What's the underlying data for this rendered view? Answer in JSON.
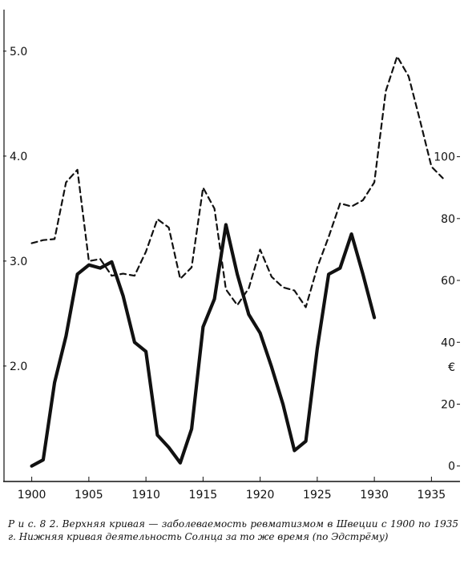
{
  "chart_data": {
    "type": "line",
    "title": "",
    "xlabel": "",
    "ylabel": "",
    "xlim": [
      1897.5,
      1937.5
    ],
    "x_ticks": [
      1900,
      1905,
      1910,
      1915,
      1920,
      1925,
      1930,
      1935
    ],
    "left_axis": {
      "ylim": [
        0.9,
        5.35
      ],
      "ticks": [
        5.0,
        4.0,
        3.0,
        2.0
      ],
      "tick_labels": [
        "5.0",
        "4.0",
        "3.0",
        "2.0"
      ]
    },
    "right_axis": {
      "ylim": [
        -5,
        146
      ],
      "ticks": [
        100,
        80,
        60,
        40,
        20,
        0
      ],
      "tick_labels": [
        "100",
        "80",
        "60",
        "40",
        "20",
        "0"
      ],
      "unit_mark": "€"
    },
    "grid": false,
    "series": [
      {
        "axis": "left",
        "style": "dashed",
        "x": [
          1900,
          1901,
          1902,
          1903,
          1904,
          1905,
          1906,
          1907,
          1908,
          1909,
          1910,
          1911,
          1912,
          1913,
          1914,
          1915,
          1916,
          1917,
          1918,
          1919,
          1920,
          1921,
          1922,
          1923,
          1924,
          1925,
          1926,
          1927,
          1928,
          1929,
          1930,
          1931,
          1932,
          1933,
          1934,
          1935,
          1936
        ],
        "values": [
          3.17,
          3.2,
          3.21,
          3.75,
          3.87,
          3.0,
          3.02,
          2.86,
          2.88,
          2.86,
          3.09,
          3.4,
          3.32,
          2.83,
          2.94,
          3.7,
          3.5,
          2.73,
          2.58,
          2.74,
          3.11,
          2.85,
          2.75,
          2.72,
          2.56,
          2.94,
          3.23,
          3.55,
          3.52,
          3.58,
          3.75,
          4.62,
          4.95,
          4.76,
          4.34,
          3.9,
          3.79
        ]
      },
      {
        "axis": "right",
        "style": "solid",
        "x": [
          1900,
          1901,
          1902,
          1903,
          1904,
          1905,
          1906,
          1907,
          1908,
          1909,
          1910,
          1911,
          1912,
          1913,
          1914,
          1915,
          1916,
          1917,
          1918,
          1919,
          1920,
          1921,
          1922,
          1923,
          1924,
          1925,
          1926,
          1927,
          1928,
          1929,
          1930
        ],
        "values": [
          0,
          2,
          27,
          42,
          62,
          65,
          64,
          66,
          55,
          40,
          37,
          10,
          6,
          1,
          12,
          45,
          54,
          78,
          62,
          49,
          43,
          32,
          20,
          5,
          8,
          38,
          62,
          64,
          75,
          62,
          48
        ]
      }
    ]
  },
  "caption": {
    "text": "Р и с. 8 2. Верхняя кривая — заболеваемость ревматизмом в Швеции с 1900 по 1935 г. Нижняя кривая деятельность Солнца за то же время (по Эдстрёму)"
  }
}
